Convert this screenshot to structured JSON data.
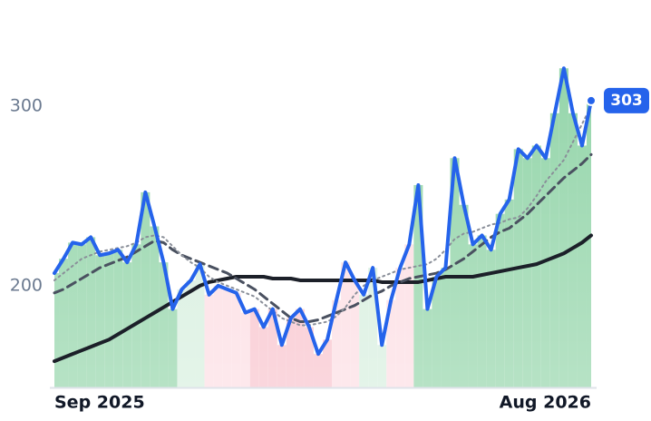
{
  "chart_data": {
    "type": "line",
    "xlim": [
      0,
      59
    ],
    "xticks": [
      {
        "value": 0,
        "label": "Sep 2025"
      },
      {
        "value": 59,
        "label": "Aug 2026"
      }
    ],
    "ylim": [
      143.4,
      359
    ],
    "yticks": [
      200,
      300
    ],
    "bands": [
      {
        "start": 0,
        "end": 13,
        "color": "#8fd3a6"
      },
      {
        "start": 14,
        "end": 16,
        "color": "#d5eedd"
      },
      {
        "start": 17,
        "end": 21,
        "color": "#fcdce2"
      },
      {
        "start": 22,
        "end": 30,
        "color": "#f8c1cb"
      },
      {
        "start": 31,
        "end": 33,
        "color": "#fcdce2"
      },
      {
        "start": 34,
        "end": 36,
        "color": "#d5eedd"
      },
      {
        "start": 37,
        "end": 39,
        "color": "#fcdce2"
      },
      {
        "start": 40,
        "end": 59,
        "color": "#8fd3a6"
      }
    ],
    "series": [
      {
        "color": "#2563eb",
        "style": "solid",
        "width": 4,
        "fill": true,
        "values": [
          207,
          215,
          224,
          223,
          227,
          217,
          218,
          220,
          213,
          223,
          252,
          233,
          213,
          187,
          198,
          203,
          212,
          195,
          200,
          198,
          196,
          185,
          187,
          177,
          187,
          167,
          182,
          187,
          177,
          162,
          170,
          192,
          213,
          203,
          195,
          210,
          167,
          192,
          210,
          223,
          256,
          187,
          205,
          210,
          271,
          245,
          223,
          228,
          220,
          240,
          248,
          276,
          271,
          278,
          271,
          296,
          321,
          296,
          278,
          303
        ]
      },
      {
        "color": "#8a8f99",
        "style": "dotted",
        "width": 2,
        "values": [
          203,
          207,
          211,
          215,
          217,
          219,
          220,
          221,
          222,
          224,
          227,
          228,
          227,
          222,
          217,
          213,
          210,
          205,
          202,
          200,
          198,
          196,
          194,
          190,
          186,
          182,
          180,
          178,
          178,
          179,
          180,
          183,
          188,
          195,
          200,
          203,
          205,
          207,
          209,
          210,
          211,
          212,
          215,
          220,
          226,
          229,
          230,
          232,
          234,
          235,
          237,
          238,
          243,
          250,
          258,
          264,
          270,
          280,
          290,
          300
        ]
      },
      {
        "color": "#4a5160",
        "style": "dashed",
        "width": 3,
        "values": [
          196,
          198,
          201,
          204,
          207,
          210,
          212,
          214,
          216,
          219,
          222,
          225,
          224,
          220,
          217,
          215,
          213,
          211,
          209,
          207,
          204,
          201,
          198,
          194,
          190,
          186,
          182,
          180,
          180,
          181,
          183,
          185,
          187,
          189,
          192,
          195,
          197,
          200,
          202,
          204,
          205,
          206,
          207,
          209,
          212,
          215,
          219,
          223,
          227,
          230,
          232,
          236,
          240,
          245,
          250,
          255,
          260,
          264,
          268,
          273
        ]
      },
      {
        "color": "#1c2029",
        "style": "solid",
        "width": 4,
        "values": [
          158,
          160,
          162,
          164,
          166,
          168,
          170,
          173,
          176,
          179,
          182,
          185,
          188,
          191,
          194,
          197,
          200,
          202,
          203,
          204,
          205,
          205,
          205,
          205,
          204,
          204,
          204,
          203,
          203,
          203,
          203,
          203,
          203,
          203,
          203,
          203,
          202,
          202,
          202,
          202,
          202,
          203,
          204,
          205,
          205,
          205,
          205,
          206,
          207,
          208,
          209,
          210,
          211,
          212,
          214,
          216,
          218,
          221,
          224,
          228
        ]
      }
    ]
  }
}
